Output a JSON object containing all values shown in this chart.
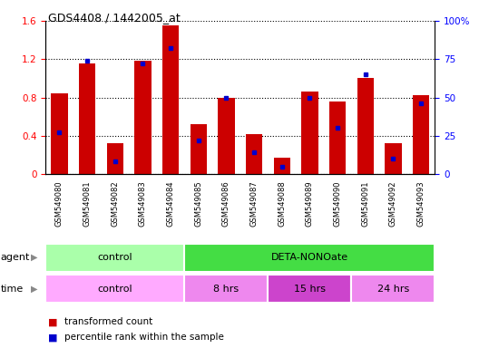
{
  "title": "GDS4408 / 1442005_at",
  "samples": [
    "GSM549080",
    "GSM549081",
    "GSM549082",
    "GSM549083",
    "GSM549084",
    "GSM549085",
    "GSM549086",
    "GSM549087",
    "GSM549088",
    "GSM549089",
    "GSM549090",
    "GSM549091",
    "GSM549092",
    "GSM549093"
  ],
  "transformed_count": [
    0.84,
    1.16,
    0.32,
    1.18,
    1.55,
    0.52,
    0.8,
    0.42,
    0.17,
    0.86,
    0.76,
    1.0,
    0.32,
    0.82
  ],
  "percentile_rank": [
    27,
    74,
    8,
    72,
    82,
    22,
    50,
    14,
    5,
    50,
    30,
    65,
    10,
    46
  ],
  "ylim_left": [
    0,
    1.6
  ],
  "ylim_right": [
    0,
    100
  ],
  "yticks_left": [
    0,
    0.4,
    0.8,
    1.2,
    1.6
  ],
  "yticks_right": [
    0,
    25,
    50,
    75,
    100
  ],
  "ytick_labels_left": [
    "0",
    "0.4",
    "0.8",
    "1.2",
    "1.6"
  ],
  "ytick_labels_right": [
    "0",
    "25",
    "50",
    "75",
    "100%"
  ],
  "bar_color": "#cc0000",
  "percentile_color": "#0000cc",
  "agent_groups": [
    {
      "label": "control",
      "start": 0,
      "end": 5,
      "color": "#aaffaa"
    },
    {
      "label": "DETA-NONOate",
      "start": 5,
      "end": 14,
      "color": "#44dd44"
    }
  ],
  "time_groups": [
    {
      "label": "control",
      "start": 0,
      "end": 5,
      "color": "#ffaaff"
    },
    {
      "label": "8 hrs",
      "start": 5,
      "end": 8,
      "color": "#ee88ee"
    },
    {
      "label": "15 hrs",
      "start": 8,
      "end": 11,
      "color": "#cc44cc"
    },
    {
      "label": "24 hrs",
      "start": 11,
      "end": 14,
      "color": "#ee88ee"
    }
  ],
  "legend_items": [
    {
      "label": "transformed count",
      "color": "#cc0000"
    },
    {
      "label": "percentile rank within the sample",
      "color": "#0000cc"
    }
  ],
  "agent_label": "agent",
  "time_label": "time",
  "bar_width": 0.6
}
